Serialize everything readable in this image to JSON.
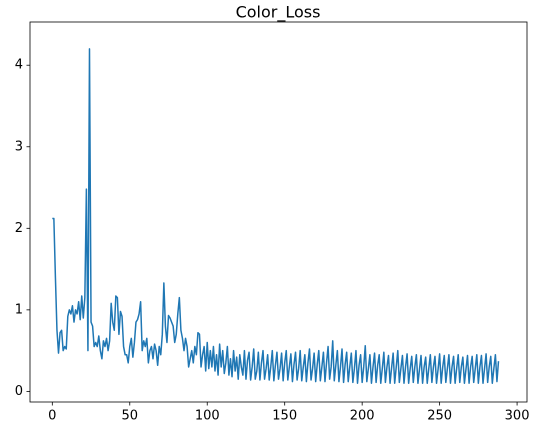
{
  "chart_data": {
    "type": "line",
    "title": "Color_Loss",
    "color": "#1f77b4",
    "xlim": [
      -14.4,
      306.4
    ],
    "xticks": [
      0,
      50,
      100,
      150,
      200,
      250,
      300
    ],
    "ylim": [
      -0.13,
      4.53
    ],
    "yticks": [
      0,
      1,
      2,
      3,
      4
    ],
    "grid": false,
    "values": [
      2.12,
      2.12,
      1.4,
      0.75,
      0.47,
      0.72,
      0.75,
      0.5,
      0.55,
      0.52,
      0.92,
      1.0,
      0.95,
      1.05,
      0.85,
      1.0,
      0.95,
      1.1,
      0.88,
      1.17,
      0.9,
      1.15,
      2.48,
      0.5,
      4.2,
      0.85,
      0.8,
      0.55,
      0.6,
      0.55,
      0.68,
      0.5,
      0.4,
      0.62,
      0.55,
      0.65,
      0.5,
      0.62,
      1.08,
      0.85,
      0.75,
      1.17,
      1.15,
      0.7,
      0.98,
      0.92,
      0.55,
      0.45,
      0.45,
      0.35,
      0.55,
      0.65,
      0.42,
      0.6,
      0.85,
      0.88,
      0.95,
      1.1,
      0.5,
      0.62,
      0.55,
      0.65,
      0.35,
      0.5,
      0.55,
      0.4,
      0.58,
      0.5,
      0.32,
      0.55,
      0.45,
      0.7,
      1.33,
      0.8,
      0.6,
      0.93,
      0.9,
      0.85,
      0.8,
      0.6,
      0.7,
      0.95,
      1.15,
      0.75,
      0.65,
      0.5,
      0.65,
      0.55,
      0.3,
      0.4,
      0.5,
      0.35,
      0.55,
      0.45,
      0.72,
      0.7,
      0.3,
      0.45,
      0.55,
      0.25,
      0.6,
      0.28,
      0.5,
      0.3,
      0.55,
      0.25,
      0.45,
      0.2,
      0.58,
      0.3,
      0.5,
      0.22,
      0.35,
      0.55,
      0.2,
      0.4,
      0.18,
      0.5,
      0.25,
      0.42,
      0.15,
      0.45,
      0.3,
      0.2,
      0.5,
      0.15,
      0.38,
      0.48,
      0.14,
      0.3,
      0.52,
      0.15,
      0.25,
      0.48,
      0.14,
      0.35,
      0.5,
      0.15,
      0.28,
      0.45,
      0.14,
      0.3,
      0.5,
      0.13,
      0.32,
      0.48,
      0.15,
      0.28,
      0.47,
      0.13,
      0.35,
      0.5,
      0.14,
      0.3,
      0.46,
      0.12,
      0.33,
      0.48,
      0.14,
      0.28,
      0.5,
      0.13,
      0.3,
      0.45,
      0.12,
      0.35,
      0.52,
      0.14,
      0.28,
      0.47,
      0.12,
      0.33,
      0.5,
      0.13,
      0.3,
      0.48,
      0.12,
      0.35,
      0.55,
      0.15,
      0.3,
      0.62,
      0.13,
      0.32,
      0.5,
      0.12,
      0.3,
      0.52,
      0.11,
      0.33,
      0.48,
      0.12,
      0.3,
      0.47,
      0.11,
      0.28,
      0.5,
      0.1,
      0.32,
      0.45,
      0.11,
      0.3,
      0.56,
      0.12,
      0.28,
      0.45,
      0.1,
      0.3,
      0.47,
      0.11,
      0.32,
      0.45,
      0.1,
      0.28,
      0.48,
      0.11,
      0.3,
      0.44,
      0.1,
      0.29,
      0.47,
      0.1,
      0.3,
      0.5,
      0.11,
      0.28,
      0.44,
      0.1,
      0.3,
      0.46,
      0.1,
      0.28,
      0.43,
      0.11,
      0.3,
      0.45,
      0.1,
      0.27,
      0.44,
      0.1,
      0.3,
      0.42,
      0.1,
      0.28,
      0.45,
      0.11,
      0.3,
      0.43,
      0.1,
      0.27,
      0.46,
      0.1,
      0.3,
      0.44,
      0.11,
      0.28,
      0.45,
      0.1,
      0.3,
      0.43,
      0.1,
      0.28,
      0.45,
      0.11,
      0.3,
      0.42,
      0.1,
      0.27,
      0.44,
      0.1,
      0.3,
      0.43,
      0.11,
      0.28,
      0.45,
      0.1,
      0.3,
      0.44,
      0.1,
      0.28,
      0.46,
      0.11,
      0.3,
      0.43,
      0.1,
      0.28,
      0.45,
      0.12,
      0.37
    ]
  }
}
